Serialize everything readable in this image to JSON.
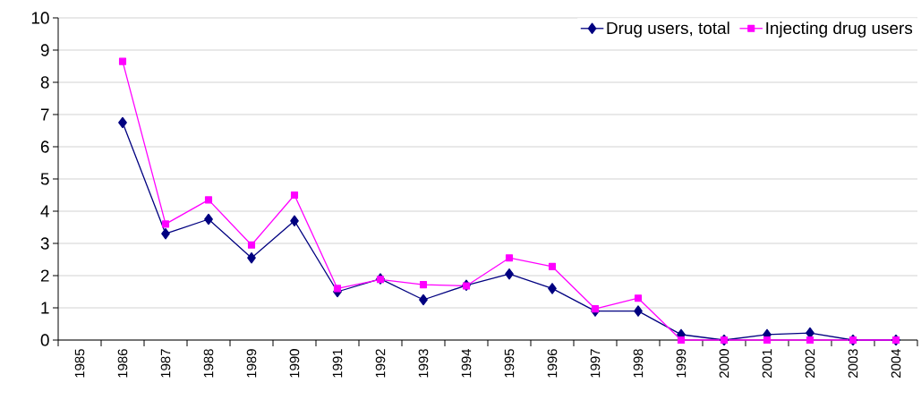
{
  "chart_data": {
    "type": "line",
    "categories": [
      "1985",
      "1986",
      "1987",
      "1988",
      "1989",
      "1990",
      "1991",
      "1992",
      "1993",
      "1994",
      "1995",
      "1996",
      "1997",
      "1998",
      "1999",
      "2000",
      "2001",
      "2002",
      "2003",
      "2004"
    ],
    "series": [
      {
        "name": "Drug users, total",
        "color": "#000080",
        "marker": "diamond",
        "values": [
          null,
          6.75,
          3.3,
          3.75,
          2.55,
          3.7,
          1.5,
          1.9,
          1.25,
          1.7,
          2.05,
          1.6,
          0.9,
          0.9,
          0.17,
          0,
          0.17,
          0.22,
          0,
          0
        ]
      },
      {
        "name": "Injecting drug users",
        "color": "#ff00ff",
        "marker": "square",
        "values": [
          null,
          8.65,
          3.6,
          4.35,
          2.95,
          4.5,
          1.6,
          1.88,
          1.72,
          1.68,
          2.55,
          2.28,
          0.97,
          1.3,
          0,
          0,
          0,
          0,
          0,
          0
        ]
      }
    ],
    "ylim": [
      0,
      10
    ],
    "yticks": [
      0,
      1,
      2,
      3,
      4,
      5,
      6,
      7,
      8,
      9,
      10
    ],
    "grid": "y",
    "legend": "top right",
    "line_style": "solid"
  }
}
